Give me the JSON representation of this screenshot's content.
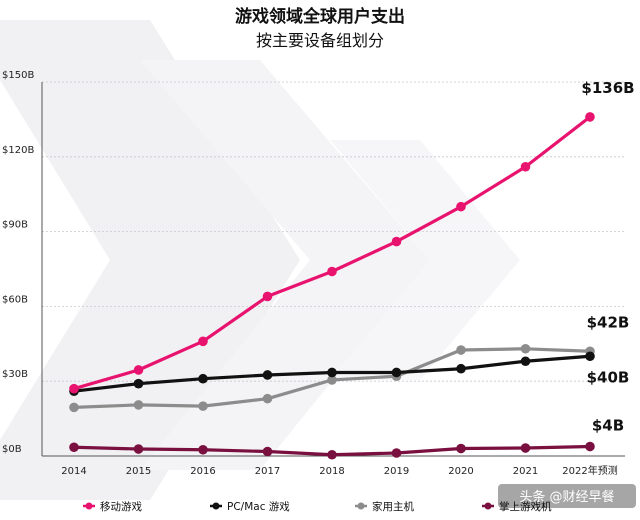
{
  "chart_data": {
    "type": "line",
    "title": "游戏领域全球用户支出",
    "subtitle": "按主要设备组划分",
    "x": [
      "2014",
      "2015",
      "2016",
      "2017",
      "2018",
      "2019",
      "2020",
      "2021",
      "2022年预测"
    ],
    "y_ticks": [
      "$0B",
      "$30B",
      "$60B",
      "$90B",
      "$120B",
      "$150B"
    ],
    "ylim": [
      0,
      150
    ],
    "grid": true,
    "legend_position": "bottom",
    "series": [
      {
        "name": "移动游戏",
        "color": "#e8136f",
        "values": [
          27,
          34.5,
          46,
          64,
          74,
          86,
          100,
          116,
          136
        ],
        "end_label": "$136B"
      },
      {
        "name": "PC/Mac 游戏",
        "color": "#111111",
        "values": [
          26,
          29,
          31,
          32.5,
          33.5,
          33.5,
          35,
          38,
          40
        ],
        "end_label": "$40B"
      },
      {
        "name": "家用主机",
        "color": "#8c8c8c",
        "values": [
          19.5,
          20.5,
          20,
          23,
          30.5,
          32,
          42.5,
          43,
          42
        ],
        "end_label": "$42B"
      },
      {
        "name": "掌上游戏机",
        "color": "#7a1040",
        "values": [
          3.5,
          2.8,
          2.5,
          1.8,
          0.5,
          1.2,
          3,
          3.2,
          3.8
        ],
        "end_label": "$4B"
      }
    ]
  },
  "watermark": "头条 @财经早餐"
}
